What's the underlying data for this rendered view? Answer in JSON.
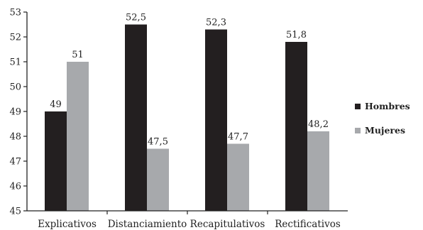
{
  "chart_data": {
    "type": "bar",
    "categories": [
      "Explicativos",
      "Distanciamiento",
      "Recapitulativos",
      "Rectificativos"
    ],
    "series": [
      {
        "name": "Hombres",
        "values": [
          49,
          52.5,
          52.3,
          51.8
        ],
        "labels": [
          "49",
          "52,5",
          "52,3",
          "51,8"
        ],
        "color": "#231f20"
      },
      {
        "name": "Mujeres",
        "values": [
          51,
          47.5,
          47.7,
          48.2
        ],
        "labels": [
          "51",
          "47,5",
          "47,7",
          "48,2"
        ],
        "color": "#a7a9ac"
      }
    ],
    "ylim": [
      45,
      53
    ],
    "yticks": [
      "45",
      "46",
      "47",
      "48",
      "49",
      "50",
      "51",
      "52",
      "53"
    ],
    "grid": false,
    "legend": "right"
  }
}
